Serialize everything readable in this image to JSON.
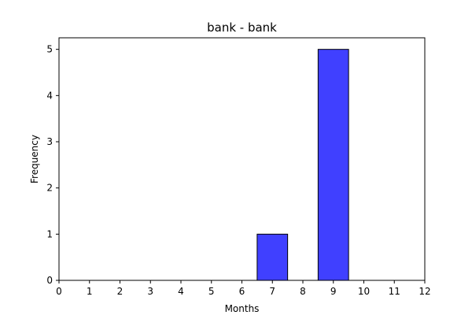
{
  "chart_data": {
    "type": "bar",
    "title": "bank - bank",
    "xlabel": "Months",
    "ylabel": "Frequency",
    "xlim": [
      0,
      12
    ],
    "ylim": [
      0,
      5.25
    ],
    "x_ticks": [
      "0",
      "1",
      "2",
      "3",
      "4",
      "5",
      "6",
      "7",
      "8",
      "9",
      "10",
      "11",
      "12"
    ],
    "y_ticks": [
      "0",
      "1",
      "2",
      "3",
      "4",
      "5"
    ],
    "bars": [
      {
        "x": 7,
        "value": 1
      },
      {
        "x": 9,
        "value": 5
      }
    ],
    "bar_width_months": 1,
    "bar_color": "#4040ff",
    "edge_color": "#000000",
    "grid": false,
    "legend": "none"
  }
}
